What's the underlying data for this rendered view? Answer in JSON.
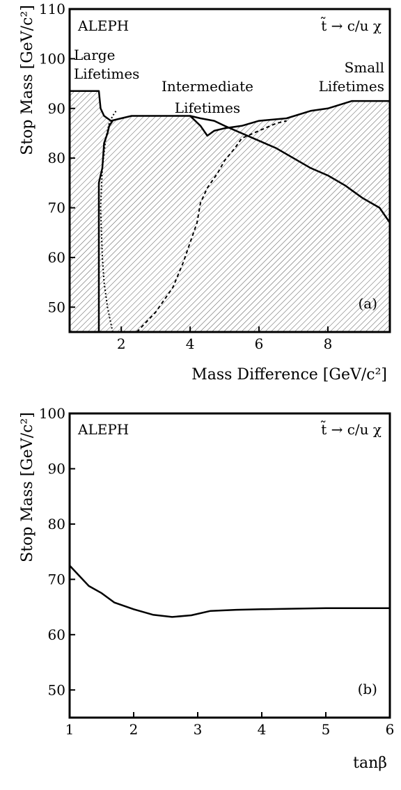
{
  "chart_data": [
    {
      "type": "area",
      "title": "ALEPH",
      "subtitle": "t̃ → c/u χ",
      "panel_label": "(a)",
      "xlabel": "Mass Difference [GeV/c²]",
      "ylabel": "Stop Mass [GeV/c²]",
      "xlim": [
        0.5,
        9.8
      ],
      "ylim": [
        45,
        110
      ],
      "xticks": [
        2,
        4,
        6,
        8
      ],
      "yticks": [
        50,
        60,
        70,
        80,
        90,
        100,
        110
      ],
      "annotations": [
        {
          "lines": [
            "Large",
            "Lifetimes"
          ]
        },
        {
          "lines": [
            "Intermediate",
            "Lifetimes"
          ]
        },
        {
          "lines": [
            "Small",
            "Lifetimes"
          ]
        }
      ],
      "excluded_region": {
        "x": [
          0.5,
          1.35,
          1.4,
          1.5,
          1.7,
          2.0,
          2.3,
          4.0,
          4.3,
          4.5,
          4.7,
          5.0,
          5.5,
          6.0,
          6.8,
          7.5,
          8.0,
          8.7,
          9.8,
          9.8,
          0.5
        ],
        "y": [
          93.5,
          93.5,
          90.0,
          88.5,
          87.5,
          88.0,
          88.5,
          88.5,
          86.5,
          84.5,
          85.5,
          86.0,
          86.5,
          87.5,
          88.0,
          89.5,
          90.0,
          91.5,
          91.5,
          45,
          45
        ]
      },
      "series": [
        {
          "style": "solid",
          "x": [
            1.35,
            1.35,
            1.45,
            1.5,
            1.6,
            1.65,
            1.75
          ],
          "y": [
            45,
            75.0,
            78.0,
            83.0,
            85.0,
            86.5,
            87.5
          ]
        },
        {
          "style": "dotted",
          "x": [
            1.75,
            1.6,
            1.5,
            1.45,
            1.4,
            1.45,
            1.55,
            1.65,
            1.75,
            1.85
          ],
          "y": [
            45,
            50.0,
            55.0,
            60.0,
            70.0,
            78.0,
            84.0,
            87.0,
            88.5,
            89.5
          ]
        },
        {
          "style": "dashed",
          "x": [
            2.45,
            3.0,
            3.5,
            3.8,
            4.0,
            4.2,
            4.3,
            4.5,
            4.8,
            5.0,
            5.3,
            5.5,
            6.0,
            6.5,
            6.8
          ],
          "y": [
            45,
            49.0,
            54.0,
            59.0,
            63.0,
            67.0,
            71.0,
            74.0,
            77.0,
            79.5,
            82.0,
            84.0,
            85.5,
            87.0,
            87.5
          ]
        },
        {
          "style": "solid",
          "x": [
            4.0,
            4.3,
            4.7,
            5.0,
            5.5,
            6.0,
            6.5,
            7.0,
            7.5,
            8.0,
            8.5,
            9.0,
            9.5,
            9.8
          ],
          "y": [
            88.5,
            88.0,
            87.5,
            86.5,
            85.0,
            83.5,
            82.0,
            80.0,
            78.0,
            76.5,
            74.5,
            72.0,
            70.0,
            67.0
          ]
        }
      ]
    },
    {
      "type": "line",
      "title": "ALEPH",
      "subtitle": "t̃ → c/u χ",
      "panel_label": "(b)",
      "xlabel": "tanβ",
      "ylabel": "Stop Mass [GeV/c²]",
      "xlim": [
        1,
        6
      ],
      "ylim": [
        45,
        100
      ],
      "xticks": [
        1,
        2,
        3,
        4,
        5,
        6
      ],
      "yticks": [
        50,
        60,
        70,
        80,
        90,
        100
      ],
      "series": [
        {
          "style": "solid",
          "x": [
            1.0,
            1.3,
            1.5,
            1.7,
            2.0,
            2.3,
            2.6,
            2.9,
            3.2,
            3.6,
            4.0,
            4.5,
            5.0,
            5.5,
            6.0
          ],
          "y": [
            72.5,
            68.8,
            67.5,
            65.8,
            64.6,
            63.6,
            63.2,
            63.5,
            64.3,
            64.5,
            64.6,
            64.7,
            64.8,
            64.8,
            64.8
          ]
        }
      ]
    }
  ]
}
